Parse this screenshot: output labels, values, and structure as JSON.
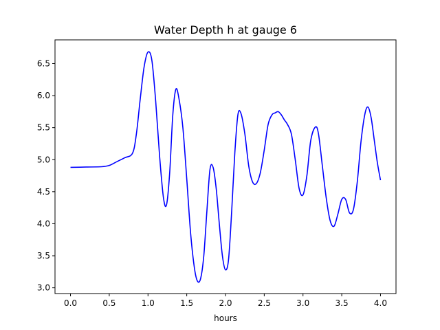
{
  "chart_data": {
    "type": "line",
    "title": "Water Depth h at gauge 6",
    "xlabel": "hours",
    "ylabel": "",
    "xlim": [
      -0.2,
      4.2
    ],
    "ylim": [
      2.91,
      6.87
    ],
    "xticks": [
      0.0,
      0.5,
      1.0,
      1.5,
      2.0,
      2.5,
      3.0,
      3.5,
      4.0
    ],
    "xtick_labels": [
      "0.0",
      "0.5",
      "1.0",
      "1.5",
      "2.0",
      "2.5",
      "3.0",
      "3.5",
      "4.0"
    ],
    "yticks": [
      3.0,
      3.5,
      4.0,
      4.5,
      5.0,
      5.5,
      6.0,
      6.5
    ],
    "ytick_labels": [
      "3.0",
      "3.5",
      "4.0",
      "4.5",
      "5.0",
      "5.5",
      "6.0",
      "6.5"
    ],
    "grid": false,
    "series": [
      {
        "color": "#0000ff",
        "x": [
          0.0,
          0.2,
          0.4,
          0.5,
          0.6,
          0.7,
          0.8,
          0.85,
          0.9,
          0.95,
          1.0,
          1.05,
          1.1,
          1.15,
          1.2,
          1.24,
          1.28,
          1.32,
          1.36,
          1.4,
          1.45,
          1.5,
          1.55,
          1.6,
          1.64,
          1.68,
          1.72,
          1.76,
          1.8,
          1.84,
          1.88,
          1.92,
          1.96,
          2.0,
          2.04,
          2.08,
          2.12,
          2.16,
          2.2,
          2.25,
          2.3,
          2.35,
          2.4,
          2.45,
          2.5,
          2.55,
          2.6,
          2.64,
          2.68,
          2.72,
          2.76,
          2.8,
          2.85,
          2.9,
          2.95,
          3.0,
          3.05,
          3.1,
          3.16,
          3.2,
          3.25,
          3.3,
          3.35,
          3.4,
          3.45,
          3.5,
          3.55,
          3.6,
          3.65,
          3.7,
          3.75,
          3.8,
          3.84,
          3.88,
          3.92,
          3.96,
          4.0
        ],
        "y": [
          4.88,
          4.885,
          4.89,
          4.91,
          4.97,
          5.03,
          5.1,
          5.4,
          5.95,
          6.45,
          6.68,
          6.55,
          5.9,
          5.05,
          4.4,
          4.3,
          4.8,
          5.7,
          6.1,
          5.95,
          5.5,
          4.7,
          3.85,
          3.3,
          3.1,
          3.15,
          3.5,
          4.2,
          4.85,
          4.88,
          4.55,
          4.0,
          3.5,
          3.28,
          3.45,
          4.2,
          5.1,
          5.7,
          5.72,
          5.4,
          4.9,
          4.65,
          4.63,
          4.8,
          5.15,
          5.55,
          5.7,
          5.73,
          5.75,
          5.7,
          5.62,
          5.55,
          5.4,
          5.0,
          4.55,
          4.45,
          4.75,
          5.3,
          5.51,
          5.4,
          4.9,
          4.4,
          4.05,
          3.96,
          4.15,
          4.38,
          4.38,
          4.17,
          4.22,
          4.65,
          5.3,
          5.72,
          5.82,
          5.65,
          5.3,
          4.95,
          4.68
        ]
      }
    ]
  }
}
